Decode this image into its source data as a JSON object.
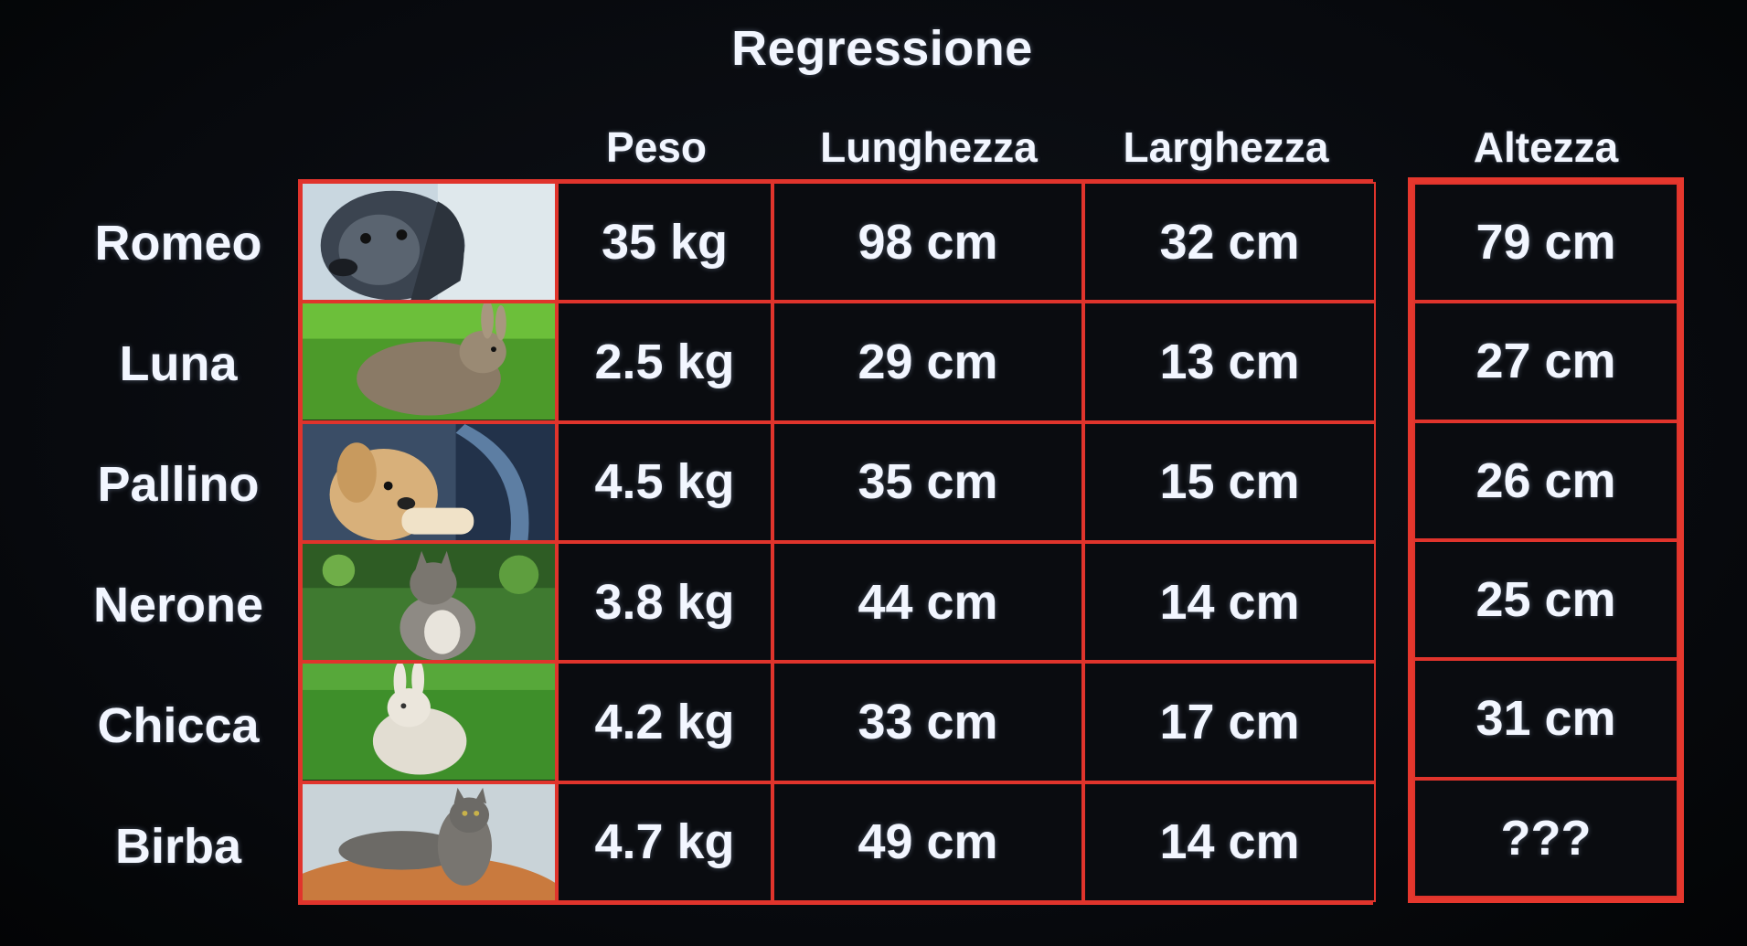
{
  "title": "Regressione",
  "headers": {
    "peso": "Peso",
    "lunghezza": "Lunghezza",
    "larghezza": "Larghezza",
    "altezza": "Altezza"
  },
  "rows": [
    {
      "name": "Romeo",
      "photo": "dog-photo",
      "peso": "35 kg",
      "lunghezza": "98 cm",
      "larghezza": "32 cm",
      "altezza": "79 cm"
    },
    {
      "name": "Luna",
      "photo": "rabbit-photo",
      "peso": "2.5 kg",
      "lunghezza": "29 cm",
      "larghezza": "13 cm",
      "altezza": "27 cm"
    },
    {
      "name": "Pallino",
      "photo": "puppy-photo",
      "peso": "4.5 kg",
      "lunghezza": "35 cm",
      "larghezza": "15 cm",
      "altezza": "26 cm"
    },
    {
      "name": "Nerone",
      "photo": "cat-photo",
      "peso": "3.8 kg",
      "lunghezza": "44 cm",
      "larghezza": "14 cm",
      "altezza": "25 cm"
    },
    {
      "name": "Chicca",
      "photo": "rabbit-photo",
      "peso": "4.2 kg",
      "lunghezza": "33 cm",
      "larghezza": "17 cm",
      "altezza": "31 cm"
    },
    {
      "name": "Birba",
      "photo": "cat-photo",
      "peso": "4.7 kg",
      "lunghezza": "49 cm",
      "larghezza": "14 cm",
      "altezza": "???"
    }
  ],
  "colors": {
    "grid_border": "#e0342c",
    "text": "#f2f6ff",
    "background": "#07090d"
  }
}
